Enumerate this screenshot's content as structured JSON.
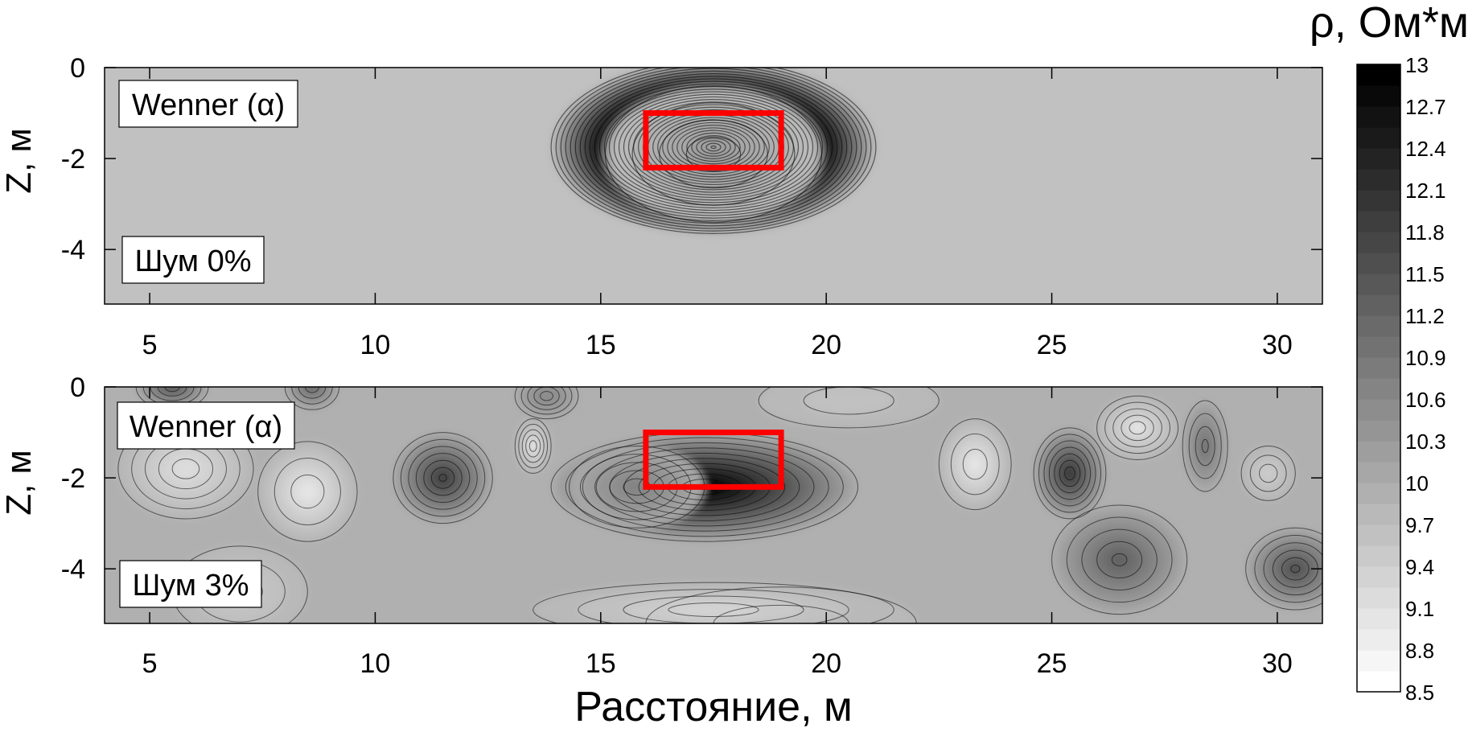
{
  "chart_data": [
    {
      "type": "heatmap",
      "panel": "top",
      "method_label": "Wenner (α)",
      "noise_label": "Шум 0%",
      "xlabel": "",
      "ylabel": "Z, м",
      "xlim": [
        4,
        31
      ],
      "ylim": [
        -5.2,
        0
      ],
      "x_ticks": [
        5,
        10,
        15,
        20,
        25,
        30
      ],
      "y_ticks": [
        0,
        -2,
        -4
      ],
      "grid": false,
      "anomalies": [
        {
          "x_center": 17.5,
          "y_center": -1.75,
          "rx": 3.6,
          "ry": 1.9,
          "value": 10.1
        },
        {
          "x_center": 17.5,
          "y_center": -1.9,
          "rx": 2.4,
          "ry": 1.5,
          "value": 0.6
        }
      ],
      "background": 9.55,
      "target_box": {
        "x": [
          16,
          19
        ],
        "z": [
          -1,
          -2.2
        ],
        "color": "#ff0000"
      }
    },
    {
      "type": "heatmap",
      "panel": "bottom",
      "method_label": "Wenner (α)",
      "noise_label": "Шум 3%",
      "xlabel": "Расстояние, м",
      "ylabel": "Z, м",
      "xlim": [
        4,
        31
      ],
      "ylim": [
        -5.2,
        0
      ],
      "x_ticks": [
        5,
        10,
        15,
        20,
        25,
        30
      ],
      "y_ticks": [
        0,
        -2,
        -4
      ],
      "grid": false,
      "anomalies": [
        {
          "x_center": 17.3,
          "y_center": -2.2,
          "rx": 3.4,
          "ry": 1.2,
          "value": 3.2
        },
        {
          "x_center": 15.8,
          "y_center": -2.2,
          "rx": 1.5,
          "ry": 0.9,
          "value": 0.8
        },
        {
          "x_center": 11.5,
          "y_center": -2.0,
          "rx": 1.1,
          "ry": 1.0,
          "value": 2.0
        },
        {
          "x_center": 25.4,
          "y_center": -1.9,
          "rx": 0.8,
          "ry": 1.0,
          "value": 2.1
        },
        {
          "x_center": 26.5,
          "y_center": -3.8,
          "rx": 1.5,
          "ry": 1.2,
          "value": 1.3
        },
        {
          "x_center": 30.4,
          "y_center": -4.0,
          "rx": 1.1,
          "ry": 0.9,
          "value": 1.6
        },
        {
          "x_center": 28.4,
          "y_center": -1.3,
          "rx": 0.5,
          "ry": 1.0,
          "value": 1.0
        },
        {
          "x_center": 5.5,
          "y_center": 0.0,
          "rx": 0.8,
          "ry": 0.5,
          "value": 1.5
        },
        {
          "x_center": 8.6,
          "y_center": 0.0,
          "rx": 0.6,
          "ry": 0.5,
          "value": 1.2
        },
        {
          "x_center": 13.8,
          "y_center": -0.2,
          "rx": 0.7,
          "ry": 0.5,
          "value": 0.7
        },
        {
          "x_center": 19.0,
          "y_center": -5.2,
          "rx": 3.0,
          "ry": 0.8,
          "value": -0.3
        },
        {
          "x_center": 8.5,
          "y_center": -2.3,
          "rx": 1.1,
          "ry": 1.1,
          "value": -0.9
        },
        {
          "x_center": 5.8,
          "y_center": -1.8,
          "rx": 1.5,
          "ry": 1.1,
          "value": -0.7
        },
        {
          "x_center": 13.5,
          "y_center": -1.3,
          "rx": 0.4,
          "ry": 0.6,
          "value": -0.8
        },
        {
          "x_center": 23.3,
          "y_center": -1.7,
          "rx": 0.8,
          "ry": 1.0,
          "value": -0.9
        },
        {
          "x_center": 26.9,
          "y_center": -0.9,
          "rx": 0.9,
          "ry": 0.7,
          "value": -0.8
        },
        {
          "x_center": 17.5,
          "y_center": -4.9,
          "rx": 4.0,
          "ry": 0.6,
          "value": -0.6
        },
        {
          "x_center": 7.0,
          "y_center": -4.5,
          "rx": 1.5,
          "ry": 1.0,
          "value": -0.4
        },
        {
          "x_center": 20.5,
          "y_center": -0.3,
          "rx": 2.0,
          "ry": 0.6,
          "value": -0.3
        },
        {
          "x_center": 29.8,
          "y_center": -1.9,
          "rx": 0.6,
          "ry": 0.6,
          "value": -0.4
        }
      ],
      "background": 9.9,
      "target_box": {
        "x": [
          16,
          19
        ],
        "z": [
          -1,
          -2.2
        ],
        "color": "#ff0000"
      }
    }
  ],
  "colorbar": {
    "title": "ρ, Ом*м",
    "min": 8.5,
    "max": 13,
    "tick_labels": [
      "13",
      "12.7",
      "12.4",
      "12.1",
      "11.8",
      "11.5",
      "11.2",
      "10.9",
      "10.6",
      "10.3",
      "10",
      "9.7",
      "9.4",
      "9.1",
      "8.8",
      "8.5"
    ],
    "colormap": [
      "#ffffff",
      "#000000"
    ],
    "levels": 30
  }
}
